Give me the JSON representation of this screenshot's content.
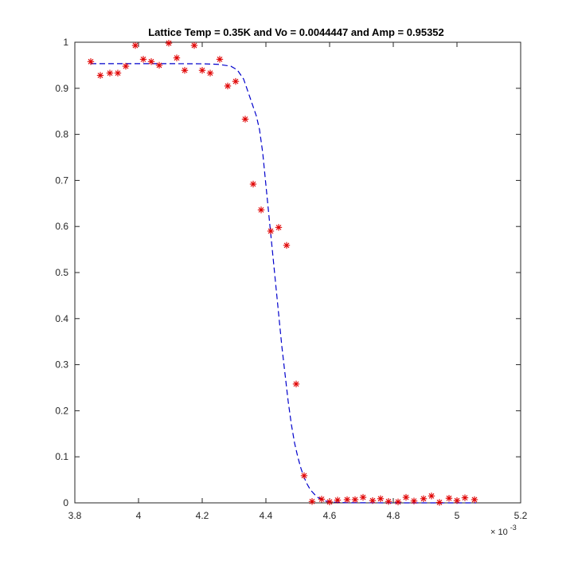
{
  "chart_data": {
    "type": "scatter",
    "title": "Lattice Temp = 0.35K and Vo = 0.0044447 and Amp = 0.95352",
    "xlabel": "",
    "ylabel": "",
    "x_exponent_label": "× 10",
    "x_exponent_power": "-3",
    "xlim": [
      3.8,
      5.2
    ],
    "ylim": [
      0,
      1
    ],
    "x_ticks": [
      3.8,
      4.0,
      4.2,
      4.4,
      4.6,
      4.8,
      5.0,
      5.2
    ],
    "x_tick_labels": [
      "3.8",
      "4",
      "4.2",
      "4.4",
      "4.6",
      "4.8",
      "5",
      "5.2"
    ],
    "y_ticks": [
      0,
      0.1,
      0.2,
      0.3,
      0.4,
      0.5,
      0.6,
      0.7,
      0.8,
      0.9,
      1.0
    ],
    "y_tick_labels": [
      "0",
      "0.1",
      "0.2",
      "0.3",
      "0.4",
      "0.5",
      "0.6",
      "0.7",
      "0.8",
      "0.9",
      "1"
    ],
    "grid": false,
    "series": [
      {
        "style": "markers",
        "marker": "asterisk",
        "color": "#e00000",
        "points": [
          [
            3.85,
            0.958
          ],
          [
            3.88,
            0.928
          ],
          [
            3.91,
            0.933
          ],
          [
            3.935,
            0.933
          ],
          [
            3.96,
            0.948
          ],
          [
            3.99,
            0.993
          ],
          [
            4.015,
            0.963
          ],
          [
            4.04,
            0.958
          ],
          [
            4.065,
            0.95
          ],
          [
            4.095,
            0.998
          ],
          [
            4.12,
            0.966
          ],
          [
            4.145,
            0.939
          ],
          [
            4.175,
            0.993
          ],
          [
            4.2,
            0.939
          ],
          [
            4.225,
            0.933
          ],
          [
            4.255,
            0.963
          ],
          [
            4.28,
            0.905
          ],
          [
            4.305,
            0.915
          ],
          [
            4.335,
            0.833
          ],
          [
            4.36,
            0.692
          ],
          [
            4.385,
            0.636
          ],
          [
            4.415,
            0.59
          ],
          [
            4.44,
            0.598
          ],
          [
            4.465,
            0.559
          ],
          [
            4.495,
            0.258
          ],
          [
            4.52,
            0.059
          ],
          [
            4.545,
            0.003
          ],
          [
            4.575,
            0.008
          ],
          [
            4.6,
            0.002
          ],
          [
            4.625,
            0.006
          ],
          [
            4.655,
            0.007
          ],
          [
            4.68,
            0.007
          ],
          [
            4.705,
            0.012
          ],
          [
            4.735,
            0.005
          ],
          [
            4.76,
            0.009
          ],
          [
            4.785,
            0.003
          ],
          [
            4.815,
            0.002
          ],
          [
            4.84,
            0.012
          ],
          [
            4.865,
            0.004
          ],
          [
            4.895,
            0.009
          ],
          [
            4.92,
            0.015
          ],
          [
            4.945,
            0.001
          ],
          [
            4.975,
            0.01
          ],
          [
            5.0,
            0.005
          ],
          [
            5.025,
            0.011
          ],
          [
            5.055,
            0.007
          ]
        ]
      },
      {
        "style": "dashed-line",
        "color": "#0000cc",
        "points": [
          [
            3.85,
            0.9535
          ],
          [
            3.9,
            0.9535
          ],
          [
            4.0,
            0.9535
          ],
          [
            4.1,
            0.9535
          ],
          [
            4.2,
            0.9532
          ],
          [
            4.25,
            0.952
          ],
          [
            4.29,
            0.948
          ],
          [
            4.31,
            0.94
          ],
          [
            4.33,
            0.92
          ],
          [
            4.35,
            0.88
          ],
          [
            4.37,
            0.84
          ],
          [
            4.38,
            0.81
          ],
          [
            4.39,
            0.76
          ],
          [
            4.4,
            0.69
          ],
          [
            4.41,
            0.62
          ],
          [
            4.42,
            0.55
          ],
          [
            4.43,
            0.48
          ],
          [
            4.44,
            0.41
          ],
          [
            4.45,
            0.34
          ],
          [
            4.46,
            0.28
          ],
          [
            4.47,
            0.22
          ],
          [
            4.48,
            0.17
          ],
          [
            4.49,
            0.13
          ],
          [
            4.5,
            0.1
          ],
          [
            4.51,
            0.075
          ],
          [
            4.52,
            0.055
          ],
          [
            4.53,
            0.04
          ],
          [
            4.54,
            0.028
          ],
          [
            4.56,
            0.013
          ],
          [
            4.58,
            0.005
          ],
          [
            4.6,
            0.002
          ],
          [
            4.65,
            0.0003
          ],
          [
            4.8,
            0.0
          ],
          [
            5.0,
            0.0
          ],
          [
            5.06,
            0.0
          ]
        ]
      }
    ]
  }
}
